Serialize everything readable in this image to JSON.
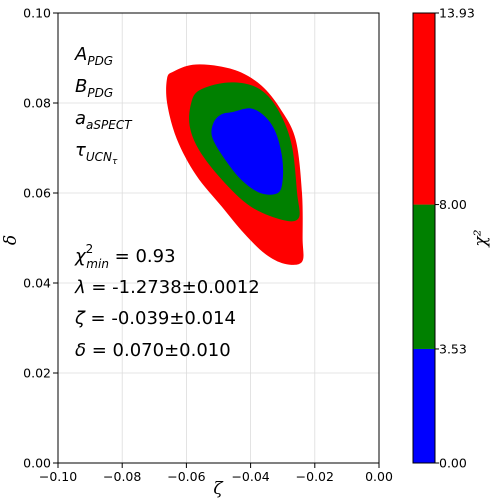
{
  "chart_data": {
    "type": "contour",
    "xlabel": "ζ",
    "ylabel": "δ",
    "xlim": [
      -0.1,
      0.0
    ],
    "ylim": [
      0.0,
      0.1
    ],
    "x_ticks": [
      "−0.10",
      "−0.08",
      "−0.06",
      "−0.04",
      "−0.02",
      "0.00"
    ],
    "x_tick_values": [
      -0.1,
      -0.08,
      -0.06,
      -0.04,
      -0.02,
      0.0
    ],
    "y_ticks": [
      "0.00",
      "0.02",
      "0.04",
      "0.06",
      "0.08",
      "0.10"
    ],
    "y_tick_values": [
      0.0,
      0.02,
      0.04,
      0.06,
      0.08,
      0.1
    ],
    "grid": true,
    "datasets": [
      {
        "main": "A",
        "sub": "PDG"
      },
      {
        "main": "B",
        "sub": "PDG"
      },
      {
        "main": "a",
        "sub": "aSPECT"
      },
      {
        "main": "τ",
        "sub": "UCN",
        "subsub": "τ"
      }
    ],
    "stats": {
      "chi2min_label": "χ",
      "chi2min_sup": "2",
      "chi2min_sub": "min",
      "chi2min_value": " = 0.93",
      "lambda_symbol": "λ",
      "lambda_value": " = -1.2738±0.0012",
      "zeta_symbol": "ζ",
      "zeta_value": " = -0.039±0.014",
      "delta_symbol": "δ",
      "delta_value": " = 0.070±0.010"
    },
    "regions": [
      {
        "level": "χ² ≤ 3.53",
        "color": "#0000ff",
        "outline": [
          [
            -0.0455,
            0.078
          ],
          [
            -0.04,
            0.0788
          ],
          [
            -0.0355,
            0.077
          ],
          [
            -0.0322,
            0.0735
          ],
          [
            -0.0302,
            0.068
          ],
          [
            -0.03,
            0.063
          ],
          [
            -0.0315,
            0.06
          ],
          [
            -0.037,
            0.06
          ],
          [
            -0.043,
            0.063
          ],
          [
            -0.0485,
            0.068
          ],
          [
            -0.052,
            0.0725
          ],
          [
            -0.0515,
            0.0757
          ],
          [
            -0.049,
            0.0775
          ]
        ]
      },
      {
        "level": "χ² ≤ 8.00",
        "color": "#008000",
        "outline": [
          [
            -0.056,
            0.0828
          ],
          [
            -0.048,
            0.0845
          ],
          [
            -0.04,
            0.084
          ],
          [
            -0.0345,
            0.0815
          ],
          [
            -0.03,
            0.0765
          ],
          [
            -0.027,
            0.07
          ],
          [
            -0.0255,
            0.06
          ],
          [
            -0.025,
            0.0545
          ],
          [
            -0.03,
            0.054
          ],
          [
            -0.04,
            0.057
          ],
          [
            -0.049,
            0.063
          ],
          [
            -0.056,
            0.0695
          ],
          [
            -0.059,
            0.075
          ],
          [
            -0.0585,
            0.08
          ]
        ]
      },
      {
        "level": "χ² ≤ 13.93",
        "color": "#ff0000",
        "outline": [
          [
            -0.064,
            0.087
          ],
          [
            -0.058,
            0.0885
          ],
          [
            -0.05,
            0.0882
          ],
          [
            -0.043,
            0.0868
          ],
          [
            -0.0365,
            0.0838
          ],
          [
            -0.031,
            0.079
          ],
          [
            -0.026,
            0.072
          ],
          [
            -0.024,
            0.06
          ],
          [
            -0.0238,
            0.05
          ],
          [
            -0.024,
            0.0447
          ],
          [
            -0.0295,
            0.0443
          ],
          [
            -0.0355,
            0.0465
          ],
          [
            -0.042,
            0.051
          ],
          [
            -0.049,
            0.057
          ],
          [
            -0.057,
            0.064
          ],
          [
            -0.063,
            0.072
          ],
          [
            -0.066,
            0.08
          ],
          [
            -0.066,
            0.0855
          ]
        ]
      }
    ],
    "colorbar": {
      "label": "χ²",
      "range": [
        0.0,
        13.93
      ],
      "ticks": [
        "0.00",
        "3.53",
        "8.00",
        "13.93"
      ],
      "tick_values": [
        0.0,
        3.53,
        8.0,
        13.93
      ],
      "bands": [
        {
          "from": 0.0,
          "to": 3.53,
          "color": "#0000ff"
        },
        {
          "from": 3.53,
          "to": 8.0,
          "color": "#008000"
        },
        {
          "from": 8.0,
          "to": 13.93,
          "color": "#ff0000"
        }
      ]
    }
  }
}
